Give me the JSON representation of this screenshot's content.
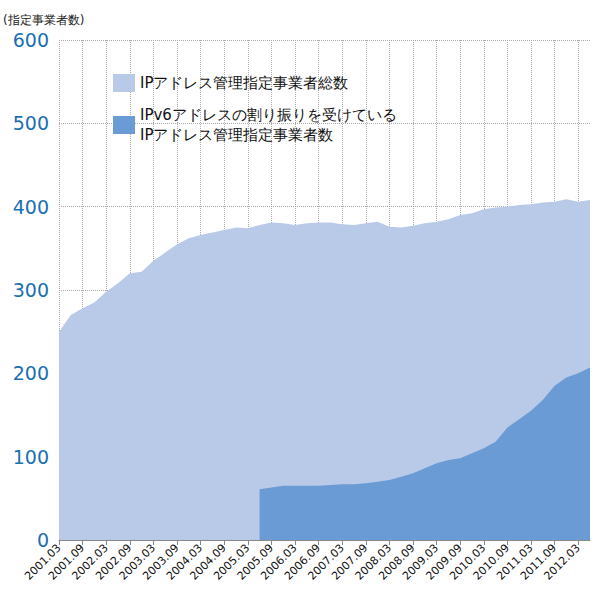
{
  "chart_data": {
    "type": "area",
    "y_label": "(指定事業者数)",
    "categories": [
      "2001.03",
      null,
      "2001.09",
      null,
      "2002.03",
      null,
      "2002.09",
      null,
      "2003.03",
      null,
      "2003.09",
      null,
      "2004.03",
      null,
      "2004.09",
      null,
      "2005.03",
      null,
      "2005.09",
      null,
      "2006.03",
      null,
      "2006.09",
      null,
      "2007.03",
      null,
      "2007.09",
      null,
      "2008.03",
      null,
      "2008.09",
      null,
      "2009.03",
      null,
      "2009.09",
      null,
      "2010.03",
      null,
      "2010.09",
      null,
      "2011.03",
      null,
      "2011.09",
      null,
      "2012.03",
      null
    ],
    "series": [
      {
        "name": "IPアドレス管理指定事業者総数",
        "color": "#b9cae8",
        "values": [
          250,
          270,
          278,
          285,
          298,
          308,
          320,
          322,
          335,
          345,
          355,
          362,
          366,
          369,
          372,
          375,
          374,
          378,
          381,
          380,
          378,
          380,
          381,
          381,
          379,
          378,
          380,
          382,
          376,
          375,
          377,
          380,
          382,
          385,
          390,
          392,
          397,
          399,
          400,
          402,
          403,
          405,
          406,
          409,
          406,
          408
        ]
      },
      {
        "name": "IPv6アドレスの割り振りを受けている\nIPアドレス管理指定事業者数",
        "color": "#6b9bd4",
        "values": [
          null,
          null,
          null,
          null,
          null,
          null,
          null,
          null,
          null,
          null,
          null,
          null,
          null,
          null,
          null,
          null,
          null,
          61,
          63,
          65,
          65,
          65,
          65,
          66,
          67,
          67,
          68,
          70,
          72,
          76,
          80,
          86,
          92,
          96,
          98,
          104,
          110,
          118,
          135,
          145,
          155,
          168,
          185,
          195,
          200,
          207
        ]
      }
    ],
    "ylim": [
      0,
      600
    ],
    "yticks": [
      0,
      100,
      200,
      300,
      400,
      500,
      600
    ],
    "grid": true,
    "legend": "top-left"
  }
}
